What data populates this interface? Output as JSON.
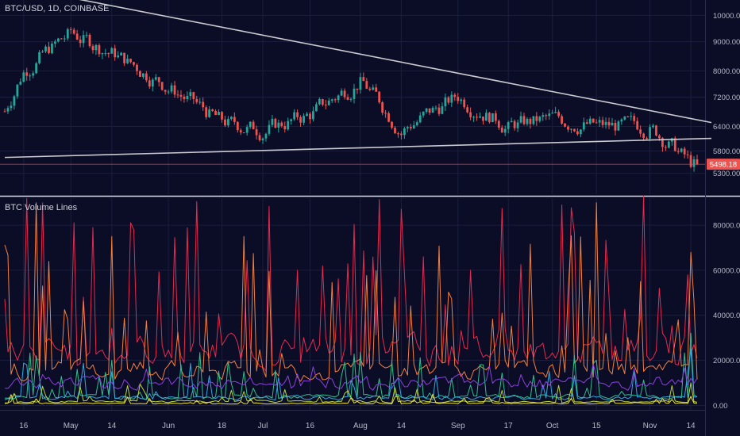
{
  "header": {
    "symbol": "BTC/USD, 1D, COINBASE"
  },
  "colors": {
    "background": "#0b0d26",
    "grid": "#1b1e3d",
    "up": "#26a69a",
    "down": "#ef5350",
    "trendline": "#c9c9cf",
    "price_line": "#ef5350",
    "axis_text": "#b5b8c6"
  },
  "chart_data": [
    {
      "type": "candlestick",
      "title": "BTC/USD, 1D, COINBASE",
      "x": [
        "2018-04-10",
        "2018-04-16",
        "2018-05-01",
        "2018-05-14",
        "2018-06-01",
        "2018-06-18",
        "2018-07-01",
        "2018-07-16",
        "2018-08-01",
        "2018-08-14",
        "2018-09-01",
        "2018-09-17",
        "2018-10-01",
        "2018-10-15",
        "2018-11-01",
        "2018-11-14",
        "2018-11-16"
      ],
      "close": [
        6800,
        8000,
        9300,
        8600,
        7500,
        6500,
        6300,
        6700,
        7700,
        6300,
        7200,
        6400,
        6600,
        6400,
        6400,
        5500,
        5498.18
      ],
      "x_ticks": [
        "16",
        "May",
        "14",
        "Jun",
        "18",
        "Jul",
        "16",
        "Aug",
        "14",
        "Sep",
        "17",
        "Oct",
        "15",
        "Nov",
        "14"
      ],
      "y_ticks": [
        "10000.00",
        "9000.00",
        "8000.00",
        "7200.00",
        "6400.00",
        "5800.00",
        "5300.00"
      ],
      "last_price": "5498.18",
      "y_scale": "log",
      "ylim": [
        5000,
        10500
      ],
      "grid": true,
      "trendlines": [
        {
          "from": [
            "2018-04-10",
            11300
          ],
          "to": [
            "2018-11-16",
            6500
          ]
        },
        {
          "from": [
            "2018-04-10",
            5650
          ],
          "to": [
            "2018-11-16",
            6100
          ]
        }
      ]
    },
    {
      "type": "line",
      "title": "BTC Volume Lines",
      "x_range": [
        "2018-04-10",
        "2018-11-16"
      ],
      "y_ticks": [
        "80000.00",
        "60000.00",
        "40000.00",
        "20000.00",
        "0.00"
      ],
      "ylim": [
        -2000,
        92000
      ],
      "grid": true,
      "series": [
        {
          "color": "#e8294f",
          "base": 22000,
          "spike_max": 75000,
          "points": [
            [
              "2018-04-22",
              90000
            ],
            [
              "2018-05-21",
              78000
            ],
            [
              "2018-07-12",
              60000
            ],
            [
              "2018-07-20",
              62000
            ],
            [
              "2018-08-21",
              66000
            ],
            [
              "2018-09-05",
              60000
            ],
            [
              "2018-11-13",
              58000
            ]
          ]
        },
        {
          "color": "#f4803c",
          "base": 14000,
          "spike_max": 60000,
          "points": [
            [
              "2018-04-20",
              90000
            ],
            [
              "2018-05-14",
              75000
            ],
            [
              "2018-06-25",
              75000
            ],
            [
              "2018-08-12",
              48000
            ],
            [
              "2018-10-15",
              90000
            ],
            [
              "2018-11-14",
              68000
            ]
          ]
        },
        {
          "color": "#2fbf8c",
          "base": 3500,
          "spike_max": 20000,
          "points": [
            [
              "2018-04-20",
              22000
            ],
            [
              "2018-05-14",
              20000
            ],
            [
              "2018-06-25",
              15000
            ],
            [
              "2018-10-15",
              20000
            ],
            [
              "2018-11-14",
              32000
            ]
          ]
        },
        {
          "color": "#35a8e0",
          "base": 3000,
          "spike_max": 16000,
          "points": [
            [
              "2018-05-14",
              15000
            ],
            [
              "2018-08-12",
              10000
            ],
            [
              "2018-11-14",
              25000
            ]
          ]
        },
        {
          "color": "#8d3fe0",
          "base": 9000,
          "spike_max": 6000,
          "points": [
            [
              "2018-09-05",
              10000
            ],
            [
              "2018-11-14",
              12000
            ]
          ]
        },
        {
          "color": "#b8d33a",
          "base": 1500,
          "spike_max": 8000,
          "points": [
            [
              "2018-11-14",
              10000
            ]
          ]
        },
        {
          "color": "#f0e33a",
          "base": 800,
          "spike_max": 4000,
          "points": [
            [
              "2018-11-14",
              4000
            ]
          ]
        }
      ]
    }
  ]
}
